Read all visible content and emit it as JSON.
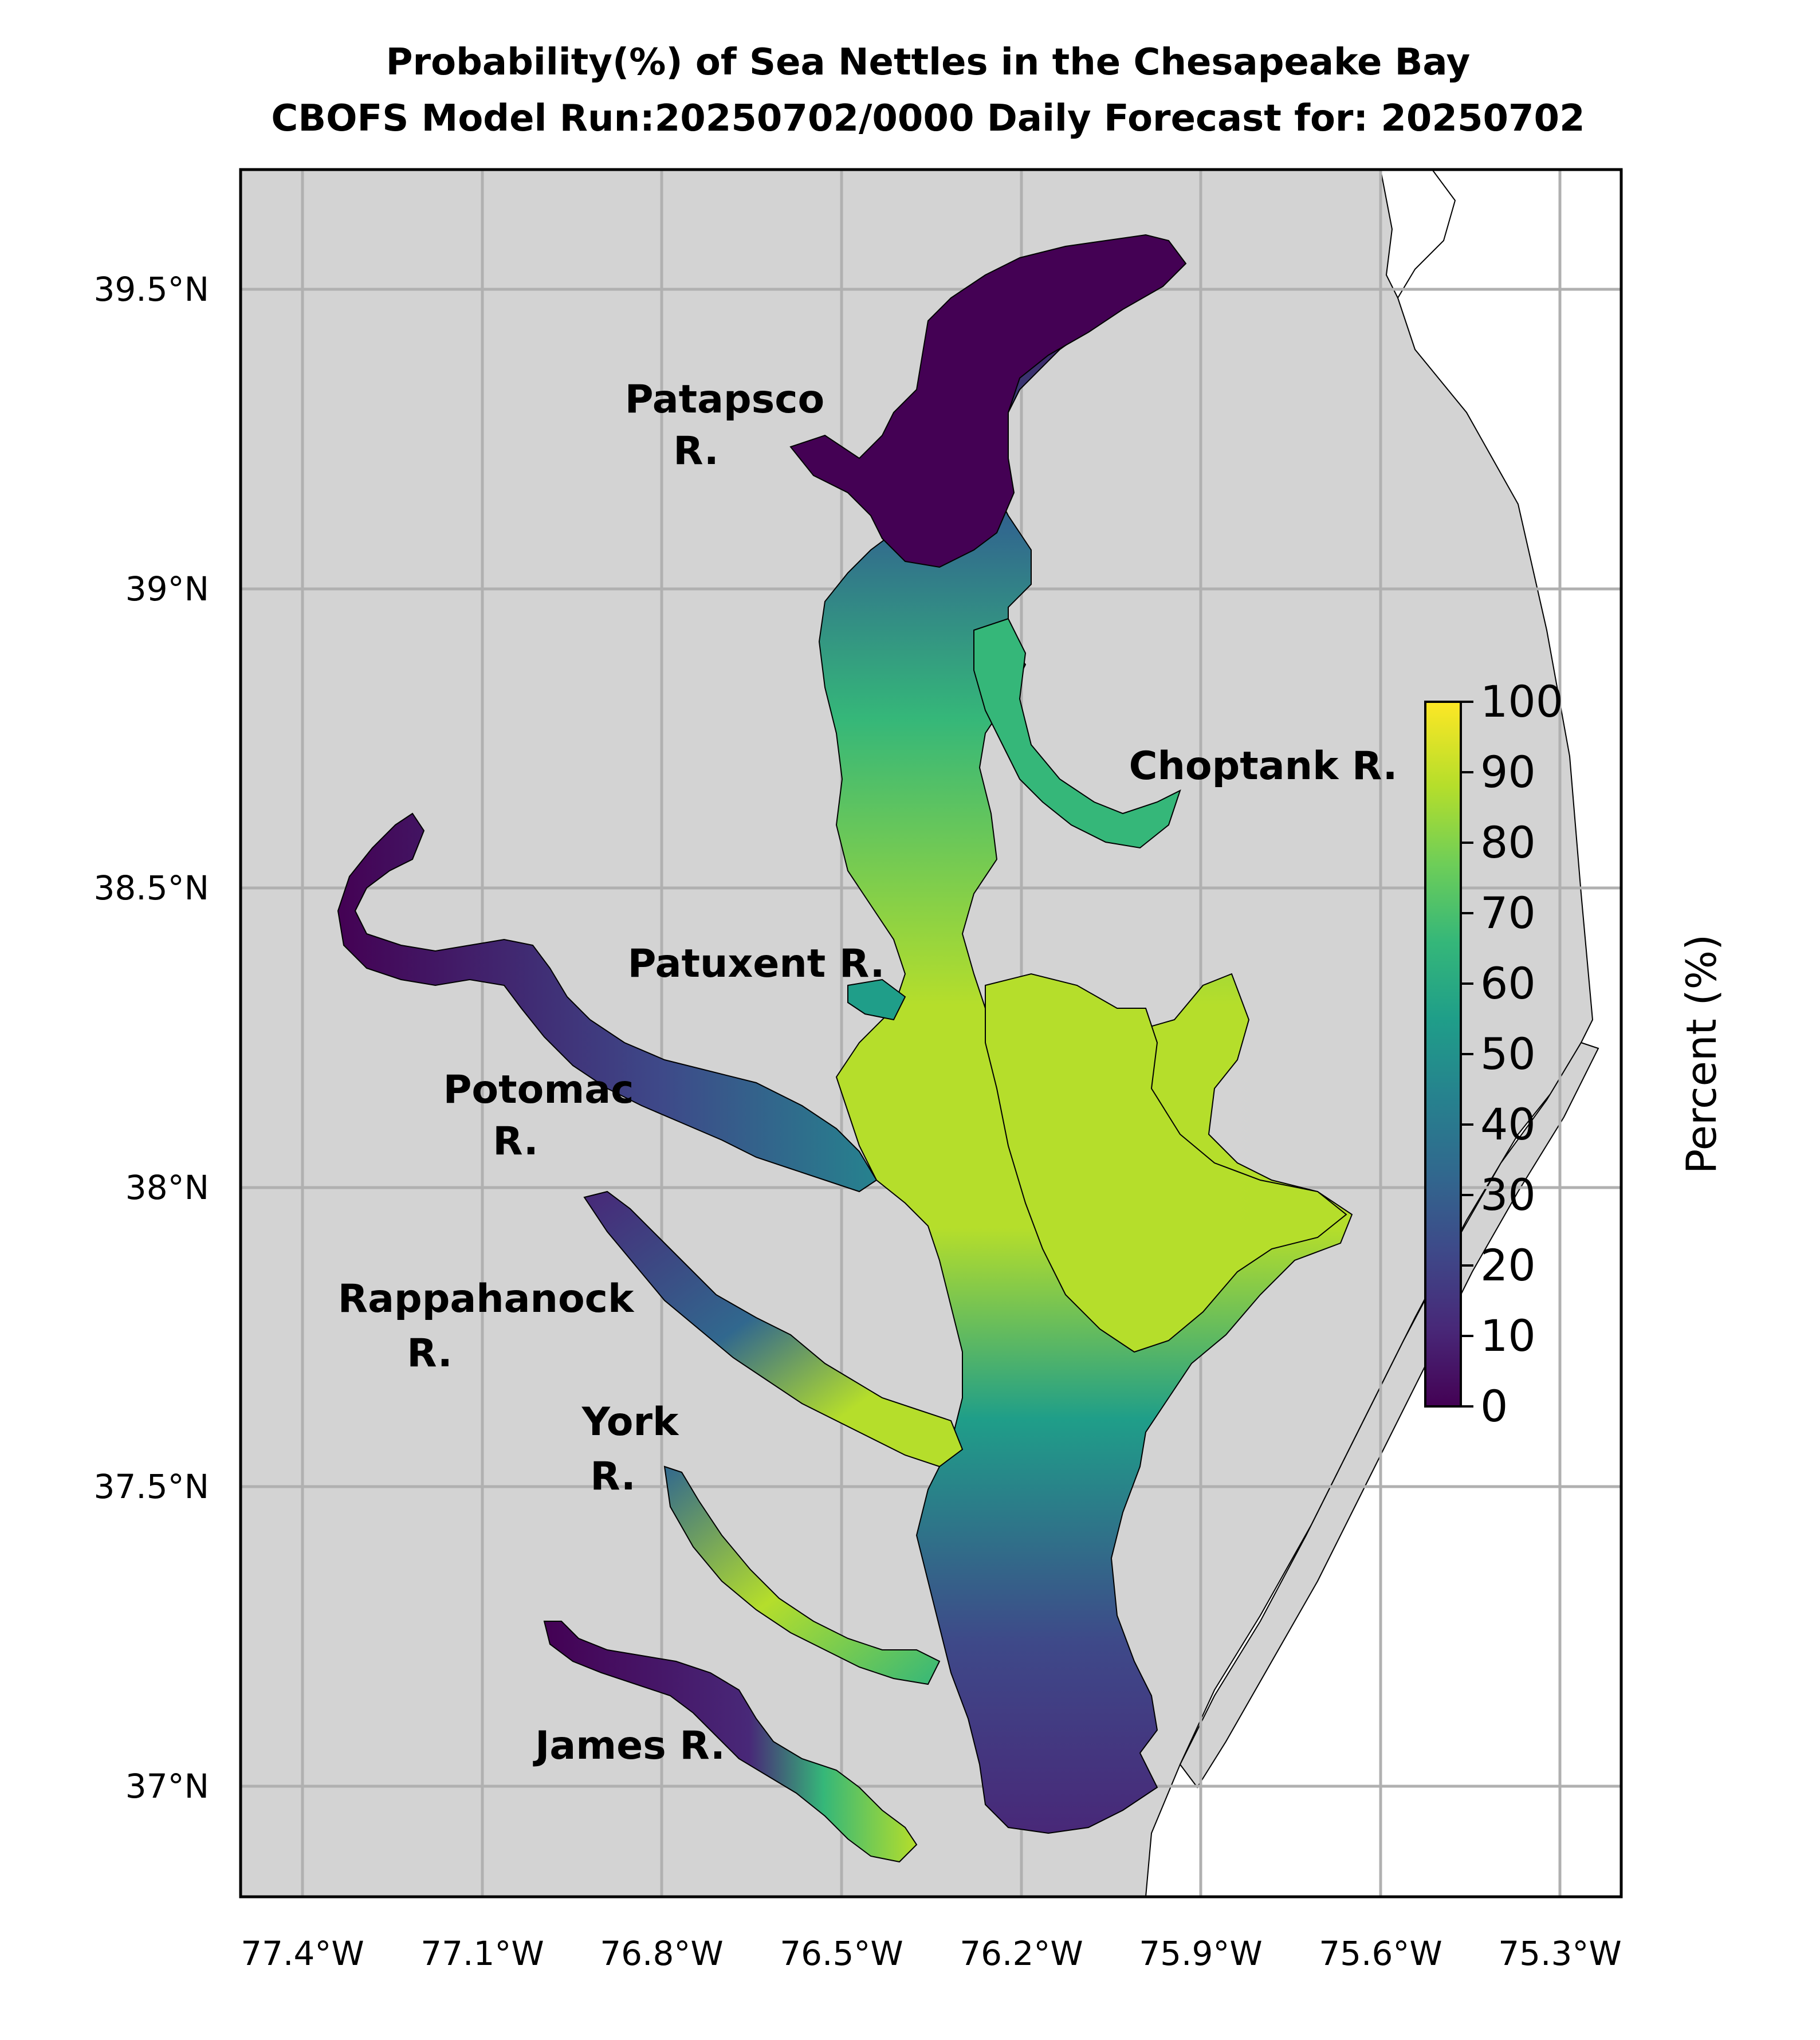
{
  "title": {
    "line1": "Probability(%) of Sea Nettles in the Chesapeake Bay",
    "line2": "CBOFS Model Run:20250702/0000 Daily Forecast for: 20250702"
  },
  "axes": {
    "lon_ticks": [
      "77.4°W",
      "77.1°W",
      "76.8°W",
      "76.5°W",
      "76.2°W",
      "75.9°W",
      "75.6°W",
      "75.3°W"
    ],
    "lat_ticks": [
      "39.5°N",
      "39°N",
      "38.5°N",
      "38°N",
      "37.5°N",
      "37°N"
    ],
    "lon_range": [
      -77.5,
      -75.2
    ],
    "lat_range": [
      36.78,
      39.68
    ],
    "grid": true
  },
  "rivers": [
    {
      "id": "patapsco",
      "lines": [
        "Patapsco",
        "R."
      ]
    },
    {
      "id": "choptank",
      "lines": [
        "Choptank R."
      ]
    },
    {
      "id": "patuxent",
      "lines": [
        "Patuxent R."
      ]
    },
    {
      "id": "potomac",
      "lines": [
        "Potomac",
        "R."
      ]
    },
    {
      "id": "rappahannock",
      "lines": [
        "Rappahanock",
        "R."
      ]
    },
    {
      "id": "york",
      "lines": [
        "York",
        "R."
      ]
    },
    {
      "id": "james",
      "lines": [
        "James R."
      ]
    }
  ],
  "colorbar": {
    "label": "Percent (%)",
    "ticks": [
      "0",
      "10",
      "20",
      "30",
      "40",
      "50",
      "60",
      "70",
      "80",
      "90",
      "100"
    ],
    "range": [
      0,
      100
    ],
    "colormap": "viridis"
  },
  "colors": {
    "land": "#d3d3d3",
    "ocean": "#ffffff",
    "grid": "#b0b0b0",
    "viridis": [
      "#440154",
      "#482878",
      "#3e4989",
      "#31688e",
      "#26828e",
      "#1f9e89",
      "#35b779",
      "#6ece58",
      "#b5de2b",
      "#fde725"
    ]
  }
}
